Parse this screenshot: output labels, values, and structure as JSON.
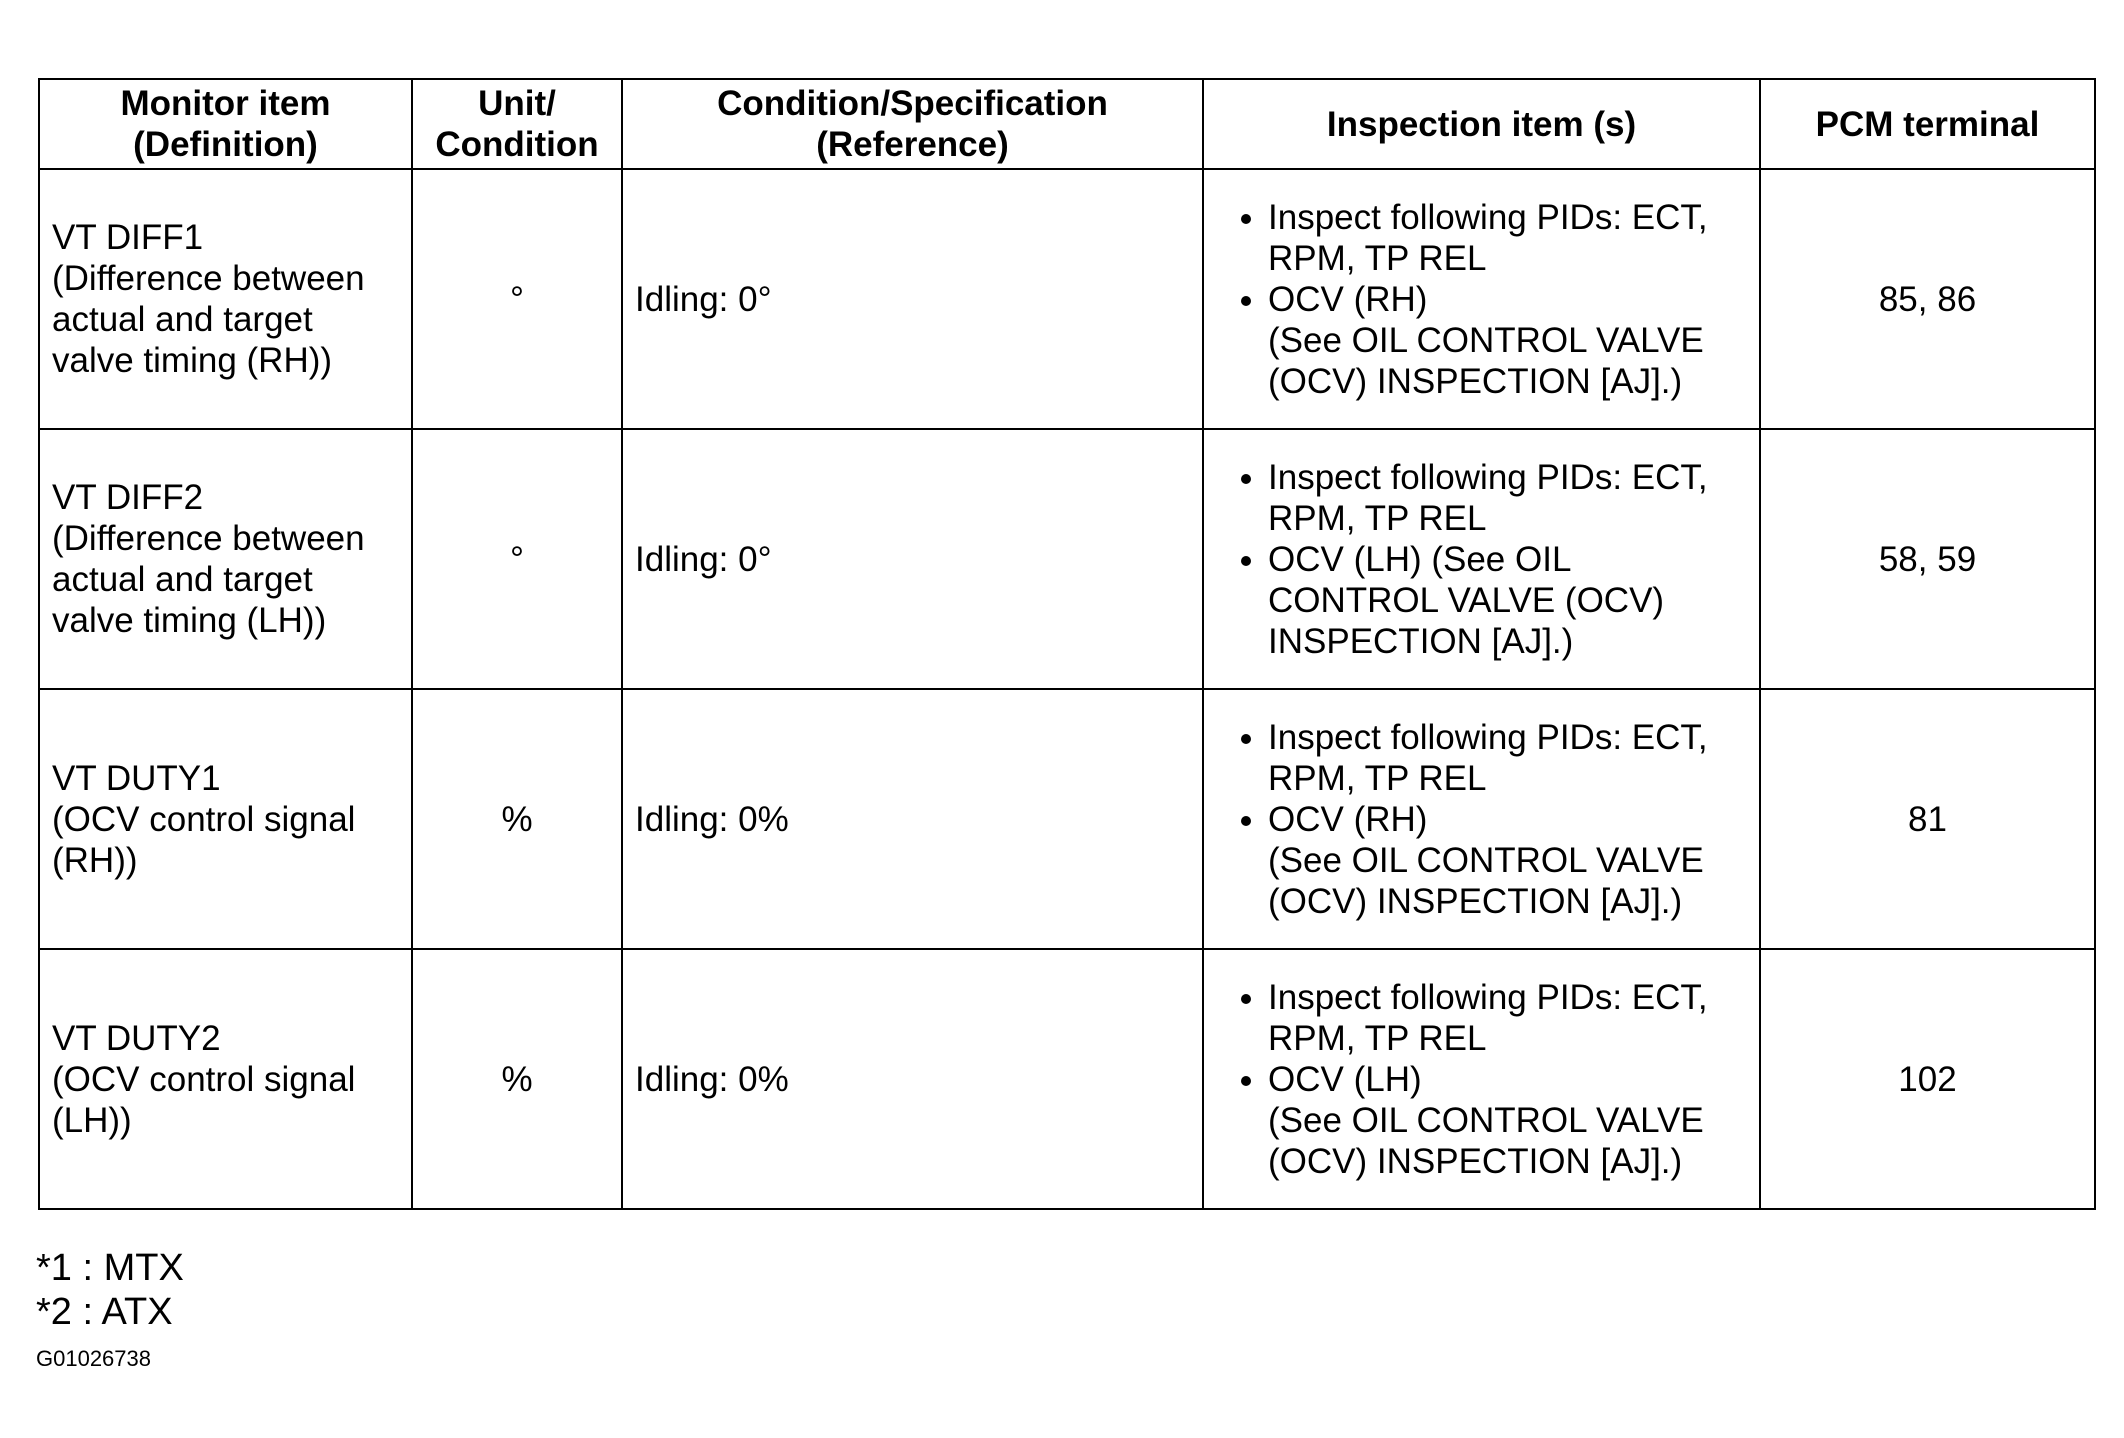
{
  "headers": [
    "Monitor item\n(Definition)",
    "Unit/\nCondition",
    "Condition/Specification\n(Reference)",
    "Inspection item (s)",
    "PCM terminal"
  ],
  "rows": [
    {
      "item": "VT DIFF1",
      "definition": "(Difference between actual and target valve timing (RH))",
      "unit": "°",
      "spec": "Idling: 0°",
      "inspection": [
        "Inspect following PIDs: ECT, RPM, TP REL",
        "OCV (RH)\n(See OIL CONTROL VALVE (OCV) INSPECTION [AJ].)"
      ],
      "terminal": "85, 86"
    },
    {
      "item": "VT DIFF2",
      "definition": "(Difference between actual and target valve timing (LH))",
      "unit": "°",
      "spec": "Idling: 0°",
      "inspection": [
        "Inspect following PIDs: ECT, RPM, TP REL",
        "OCV (LH) (See OIL CONTROL VALVE (OCV) INSPECTION [AJ].)"
      ],
      "terminal": "58, 59"
    },
    {
      "item": "VT DUTY1",
      "definition": "(OCV control signal (RH))",
      "unit": "%",
      "spec": "Idling: 0%",
      "inspection": [
        "Inspect following PIDs: ECT, RPM, TP REL",
        "OCV (RH)\n(See OIL CONTROL VALVE (OCV) INSPECTION [AJ].)"
      ],
      "terminal": "81"
    },
    {
      "item": "VT DUTY2",
      "definition": "(OCV control signal (LH))",
      "unit": "%",
      "spec": "Idling: 0%",
      "inspection": [
        "Inspect following PIDs: ECT, RPM, TP REL",
        "OCV (LH)\n(See OIL CONTROL VALVE (OCV) INSPECTION [AJ].)"
      ],
      "terminal": "102"
    }
  ],
  "footnotes": [
    "*1 : MTX",
    "*2 : ATX"
  ],
  "figure_code": "G01026738"
}
